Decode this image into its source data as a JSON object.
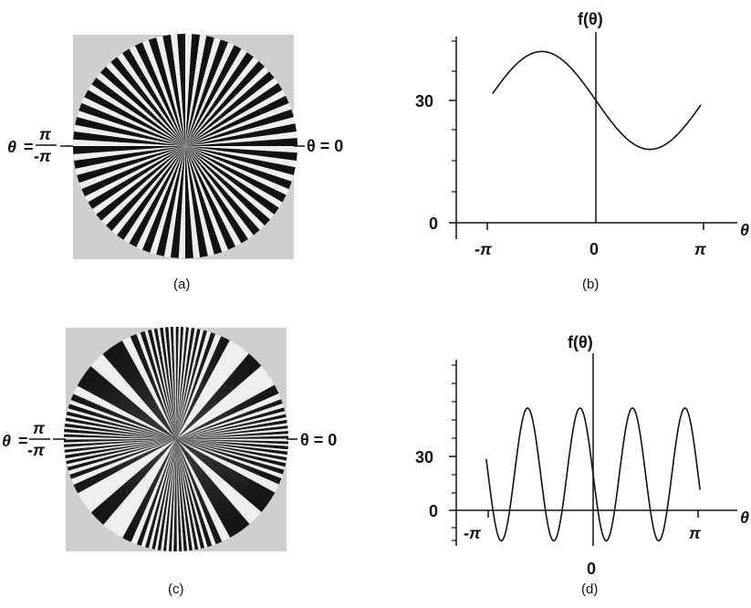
{
  "panel_a": {
    "spoke_count": 48,
    "left_label_theta": "θ",
    "left_label_eq": "=",
    "left_label_pi_top": "π",
    "left_label_pi_bottom": "-π",
    "right_label": "θ = 0",
    "caption": "(a)"
  },
  "panel_c": {
    "left_label_theta": "θ",
    "left_label_eq": "=",
    "left_label_pi_top": "π",
    "left_label_pi_bottom": "-π",
    "right_label": "θ = 0",
    "caption": "(c)"
  },
  "chart_data": [
    {
      "id": "b",
      "type": "line",
      "title": "f(θ)",
      "xlabel": "θ",
      "ylabel": "f(θ)",
      "xlim": [
        -3.14,
        3.14
      ],
      "ylim": [
        0,
        50
      ],
      "xtick_labels": [
        "-π",
        "0",
        "π"
      ],
      "ytick_labels": [
        "0",
        "30"
      ],
      "series": [
        {
          "function": "30 - 12*sin(θ)",
          "x_range": [
            -3.0,
            3.05
          ]
        }
      ],
      "caption": "(b)"
    },
    {
      "id": "d",
      "type": "line",
      "title": "f(θ)",
      "xlabel": "θ",
      "ylabel": "f(θ)",
      "xlim": [
        -3.14,
        3.14
      ],
      "ylim": [
        -15,
        60
      ],
      "xtick_labels": [
        "-π",
        "0",
        "π"
      ],
      "ytick_labels": [
        "0",
        "30"
      ],
      "series": [
        {
          "function": "20 - 37*sin(4θ)",
          "x_range": [
            -3.2,
            3.2
          ]
        }
      ],
      "caption": "(d)"
    }
  ]
}
